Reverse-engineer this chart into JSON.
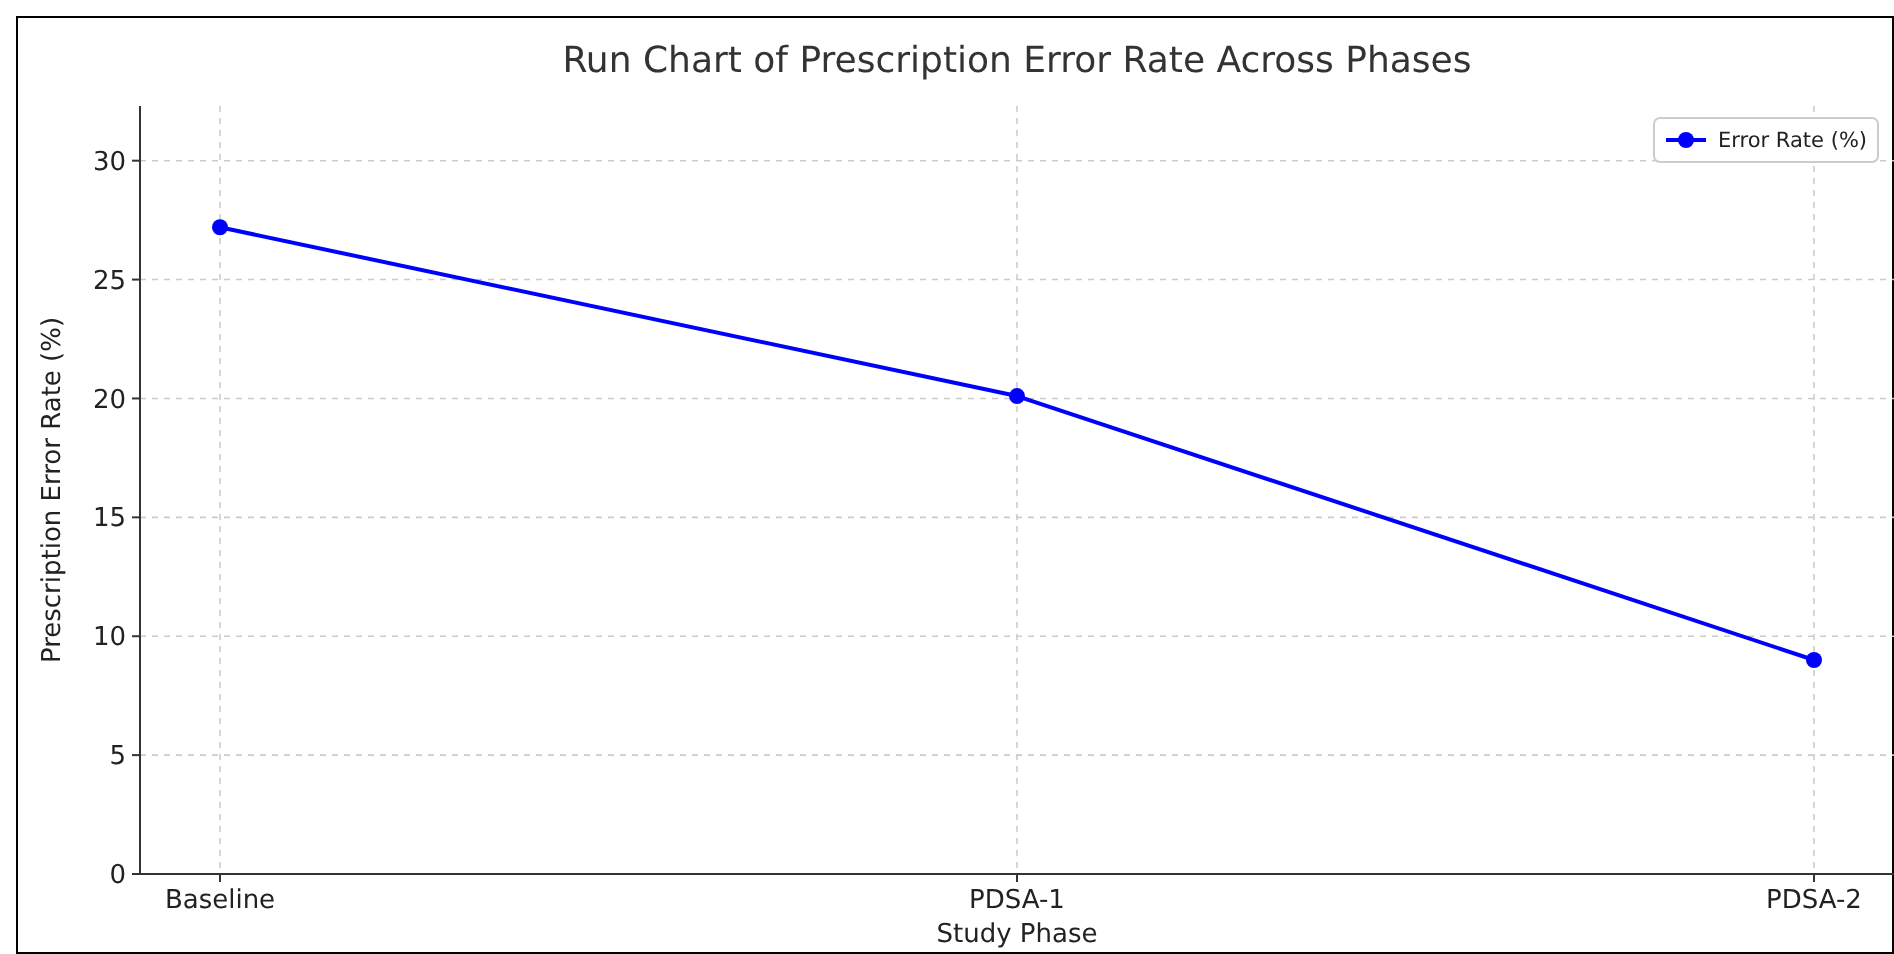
{
  "chart_data": {
    "type": "line",
    "title": "Run Chart of Prescription Error Rate Across Phases",
    "xlabel": "Study Phase",
    "ylabel": "Prescription Error Rate (%)",
    "categories": [
      "Baseline",
      "PDSA-1",
      "PDSA-2"
    ],
    "series": [
      {
        "name": "Error Rate (%)",
        "color": "#0000ff",
        "values": [
          27.2,
          20.1,
          9.0
        ]
      }
    ],
    "ylim": [
      0,
      32.3
    ],
    "yticks": [
      0,
      5,
      10,
      15,
      20,
      25,
      30
    ],
    "grid": true,
    "legend": "top right",
    "marker": "circle",
    "line_style": "solid"
  }
}
